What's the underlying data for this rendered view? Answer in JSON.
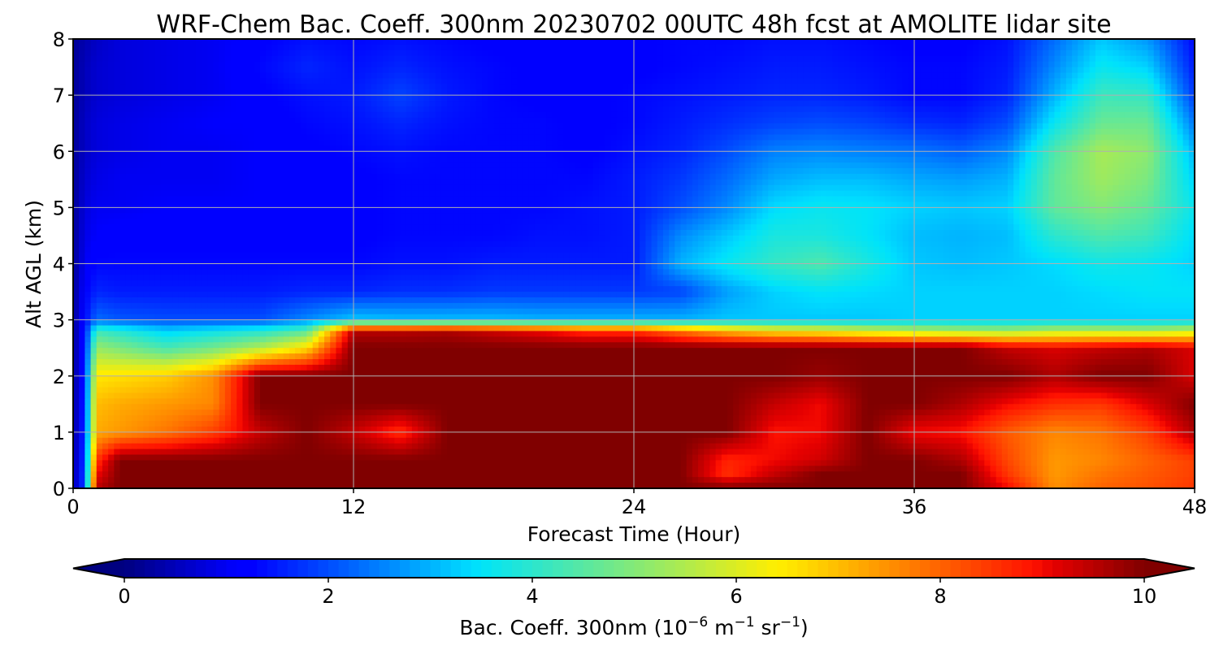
{
  "chart_data": {
    "type": "heatmap",
    "title": "WRF-Chem Bac. Coeff. 300nm  20230702 00UTC 48h fcst at AMOLITE lidar site",
    "xlabel": "Forecast Time (Hour)",
    "ylabel": "Alt AGL (km)",
    "xlim": [
      0,
      48
    ],
    "ylim": [
      0,
      8
    ],
    "xticks": [
      0,
      12,
      24,
      36,
      48
    ],
    "yticks": [
      0,
      1,
      2,
      3,
      4,
      5,
      6,
      7,
      8
    ],
    "grid": true,
    "colormap": "jet",
    "colorbar": {
      "label_main": "Bac. Coeff. 300nm  (10",
      "label_exp1": "−6",
      "label_mid": " m",
      "label_exp2": "−1",
      "label_mid2": " sr",
      "label_exp3": "−1",
      "label_end": ")",
      "range": [
        0,
        10
      ],
      "ticks": [
        0,
        2,
        4,
        6,
        8,
        10
      ],
      "extend": "both",
      "orientation": "horizontal"
    },
    "x": [
      0,
      0.5,
      1,
      2,
      4,
      6,
      8,
      10,
      12,
      14,
      16,
      18,
      20,
      22,
      24,
      26,
      28,
      30,
      32,
      34,
      36,
      38,
      40,
      42,
      44,
      46,
      48
    ],
    "y": [
      0,
      0.25,
      0.5,
      1,
      1.5,
      2,
      2.5,
      2.8,
      3,
      3.5,
      4,
      4.5,
      5,
      5.5,
      6,
      6.5,
      7,
      7.5,
      8
    ],
    "z": [
      [
        0.3,
        2.0,
        9.5,
        10,
        10,
        10,
        10,
        10,
        10,
        10,
        10,
        10,
        10,
        10,
        10,
        10,
        10,
        10,
        10,
        10,
        10,
        10,
        9,
        7.5,
        8,
        8.2,
        8.5
      ],
      [
        0.3,
        2.0,
        9.0,
        10,
        10,
        10,
        10,
        10,
        10,
        10,
        10,
        10,
        10,
        10,
        10,
        10,
        8.6,
        9.4,
        10,
        10,
        10,
        10,
        8.5,
        7.4,
        7.8,
        8.1,
        8.4
      ],
      [
        0.3,
        1.9,
        8.5,
        10,
        10,
        10,
        10,
        10,
        10,
        10,
        10,
        10,
        10,
        10,
        10,
        10,
        8.7,
        9,
        9.3,
        10,
        10,
        9.6,
        8.3,
        7.4,
        7.6,
        8,
        8.4
      ],
      [
        0.2,
        1.8,
        7.2,
        7.4,
        7.8,
        8.4,
        9.4,
        10,
        9.4,
        8.6,
        10,
        10,
        10,
        10,
        10,
        10,
        10,
        8.9,
        9,
        10,
        9,
        8.9,
        8.1,
        7.6,
        7.8,
        8.4,
        9.6
      ],
      [
        0.2,
        1.7,
        7,
        7.2,
        7.4,
        7.6,
        10,
        10,
        10,
        10,
        10,
        10,
        10,
        10,
        10,
        10,
        10,
        9.4,
        9,
        10,
        10,
        9.6,
        9,
        8.6,
        8.5,
        9.2,
        10
      ],
      [
        0.2,
        1.6,
        6.5,
        6.6,
        6.8,
        7.5,
        10,
        10,
        10,
        10,
        10,
        10,
        10,
        10,
        10,
        10,
        10,
        10,
        9.8,
        10,
        10,
        10,
        10,
        9.6,
        10,
        10,
        9.2
      ],
      [
        0.2,
        1.5,
        5.2,
        4.9,
        4.3,
        4.8,
        5.5,
        6.6,
        10,
        10,
        10,
        10,
        10,
        10,
        10,
        10,
        10,
        10,
        10,
        10,
        10,
        10,
        9.4,
        9.2,
        9.4,
        9.6,
        9.2
      ],
      [
        0.2,
        1.4,
        4.2,
        3.9,
        3.3,
        3.6,
        3.9,
        4.5,
        9.5,
        9.5,
        9.6,
        9.3,
        9,
        8.6,
        8.6,
        7.8,
        7,
        6.5,
        6.3,
        5.9,
        5.6,
        5.4,
        5.3,
        5.6,
        5.6,
        5.5,
        5.8
      ],
      [
        0.2,
        1.3,
        2.3,
        2.1,
        2,
        2,
        2,
        2.6,
        3.2,
        3.1,
        3.1,
        3.1,
        3,
        3,
        3,
        3,
        3.2,
        3.2,
        3.2,
        3.2,
        3.3,
        3.3,
        3.3,
        3.3,
        3.3,
        3.3,
        3.3
      ],
      [
        0.2,
        1.2,
        1.6,
        1.5,
        1.5,
        1.5,
        1.5,
        1.6,
        1.6,
        1.7,
        1.7,
        1.8,
        1.8,
        1.8,
        1.8,
        1.9,
        2.8,
        3.3,
        3.5,
        3.4,
        3.3,
        3.3,
        3.3,
        3.3,
        3.4,
        3.5,
        3.5
      ],
      [
        0.2,
        1.0,
        1.3,
        1.3,
        1.3,
        1.3,
        1.3,
        1.3,
        1.3,
        1.4,
        1.4,
        1.5,
        1.5,
        1.5,
        1.5,
        3,
        3.6,
        4.1,
        4.4,
        3.8,
        3.2,
        3.1,
        3.2,
        3.4,
        3.7,
        3.6,
        3.3
      ],
      [
        0.2,
        0.9,
        1.1,
        1.2,
        1.2,
        1.2,
        1.2,
        1.2,
        1.2,
        1.3,
        1.3,
        1.3,
        1.4,
        1.4,
        1.5,
        2.6,
        3.2,
        3.8,
        3.8,
        3.5,
        3.1,
        3,
        3.1,
        4,
        4.4,
        4.2,
        3.4
      ],
      [
        0.2,
        0.8,
        1,
        1,
        1.1,
        1.1,
        1.1,
        1.2,
        1.2,
        1.3,
        1.3,
        1.3,
        1.3,
        1.4,
        1.5,
        2,
        2.6,
        3.4,
        3.6,
        3.5,
        3.3,
        3.2,
        3.3,
        4.6,
        5,
        4.6,
        3.6
      ],
      [
        0.2,
        0.7,
        0.9,
        1,
        1,
        1,
        1.1,
        1.1,
        1.2,
        1.3,
        1.3,
        1.3,
        1.3,
        1.3,
        1.5,
        1.8,
        2.3,
        2.9,
        3.1,
        3.1,
        2.9,
        2.8,
        3,
        4.6,
        5.3,
        4.9,
        3.3
      ],
      [
        0.2,
        0.6,
        0.8,
        0.9,
        1,
        1,
        1.1,
        1.2,
        1.3,
        1.4,
        1.3,
        1.3,
        1.3,
        1.2,
        1.4,
        1.6,
        2,
        2.5,
        2.6,
        2.5,
        2.4,
        2.2,
        2.6,
        4.4,
        5.4,
        5.1,
        3
      ],
      [
        0.2,
        0.6,
        0.8,
        0.9,
        1,
        1.1,
        1.1,
        1.3,
        1.4,
        1.6,
        1.4,
        1.3,
        1.3,
        1.2,
        1.3,
        1.5,
        1.7,
        1.9,
        2,
        1.9,
        1.7,
        1.6,
        2,
        3.6,
        4.7,
        4.7,
        2.4
      ],
      [
        0.2,
        0.5,
        0.7,
        0.8,
        0.9,
        1,
        1.2,
        1.4,
        1.5,
        1.9,
        1.5,
        1.3,
        1.2,
        1.2,
        1.3,
        1.4,
        1.5,
        1.6,
        1.6,
        1.5,
        1.3,
        1.3,
        1.6,
        3,
        4.2,
        4.1,
        1.8
      ],
      [
        0.2,
        0.5,
        0.7,
        0.8,
        0.9,
        1,
        1.3,
        1.6,
        1.4,
        1.6,
        1.4,
        1.3,
        1.2,
        1.2,
        1.2,
        1.3,
        1.4,
        1.5,
        1.5,
        1.4,
        1.3,
        1.3,
        1.5,
        2.6,
        3.6,
        3.3,
        1.5
      ],
      [
        0.2,
        0.4,
        0.6,
        0.8,
        0.9,
        1,
        1.2,
        1.4,
        1.3,
        1.4,
        1.3,
        1.2,
        1.2,
        1.2,
        1.2,
        1.3,
        1.3,
        1.4,
        1.4,
        1.3,
        1.2,
        1.2,
        1.4,
        2.3,
        3.2,
        2.7,
        1.3
      ]
    ]
  }
}
